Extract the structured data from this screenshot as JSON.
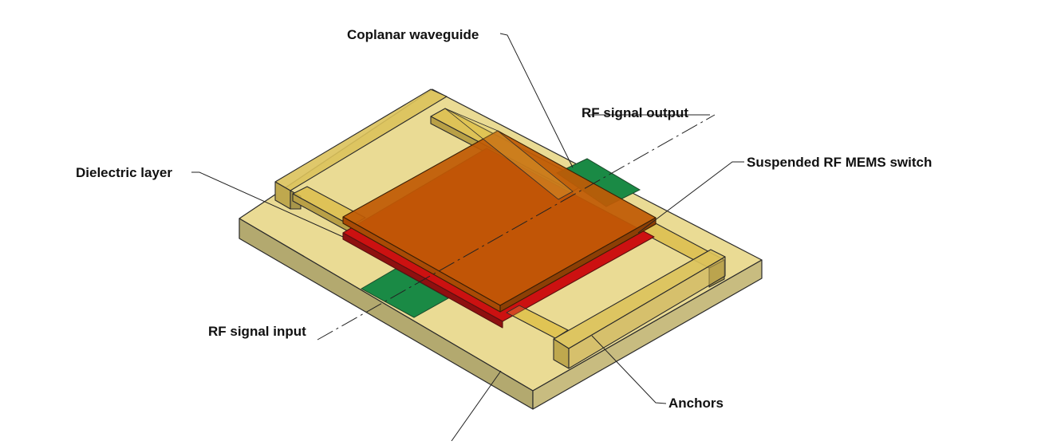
{
  "labels": {
    "coplanar_waveguide": "Coplanar waveguide",
    "rf_signal_output": "RF signal output",
    "suspended_switch": "Suspended RF MEMS switch",
    "dielectric_layer": "Dielectric layer",
    "rf_signal_input": "RF signal input",
    "anchors": "Anchors"
  },
  "colors": {
    "substrate": "#eadb94",
    "substrate_side": "#c8bc80",
    "substrate_front": "#b3a96f",
    "waveguide": "#d9be55",
    "signal_pad": "#1a8a45",
    "dielectric": "#cc1111",
    "membrane": "#bf5a05"
  }
}
